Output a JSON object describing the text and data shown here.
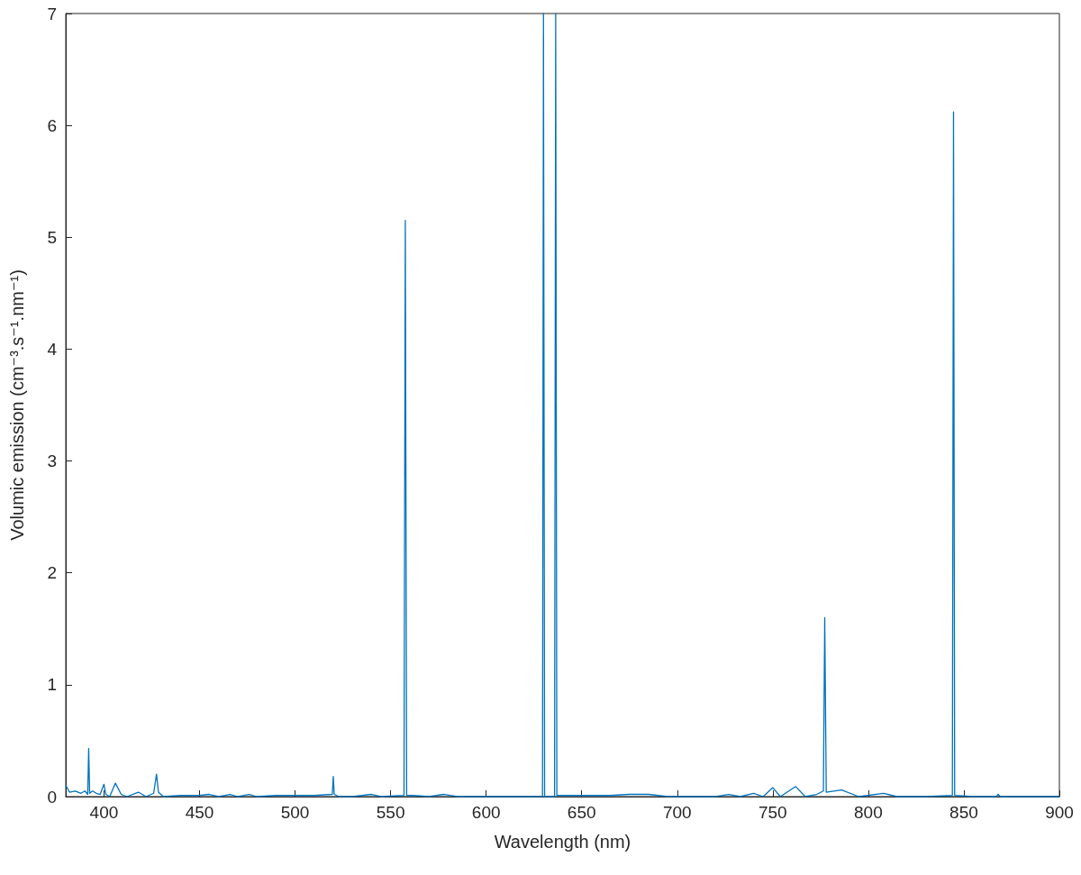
{
  "chart_data": {
    "type": "line",
    "xlabel": "Wavelength (nm)",
    "ylabel": "Volumic emission (cm⁻³.s⁻¹.nm⁻¹)",
    "x": [
      380,
      382,
      385,
      388,
      390,
      391.5,
      392,
      392.5,
      394,
      396,
      398,
      400,
      401,
      403,
      406,
      409,
      412,
      418,
      422,
      426,
      427.5,
      428.5,
      431,
      440,
      450,
      455,
      460,
      466,
      470,
      476,
      480,
      490,
      500,
      510,
      519.5,
      520,
      520.5,
      523,
      530,
      540,
      545,
      557,
      557.7,
      558.4,
      562,
      570,
      578,
      585,
      600,
      620,
      629.5,
      630,
      630.6,
      635.8,
      636.4,
      637,
      650,
      665,
      675,
      685,
      695,
      710,
      720,
      727,
      733,
      740,
      745,
      750,
      754,
      762,
      767,
      773,
      776.5,
      777.2,
      778,
      786,
      795,
      808,
      815,
      830,
      844,
      844.6,
      845.2,
      855,
      867,
      868,
      869,
      900
    ],
    "series": [
      {
        "color": "#0072bd",
        "values": [
          0.1,
          0.04,
          0.05,
          0.03,
          0.05,
          0.02,
          0.43,
          0.03,
          0.05,
          0.03,
          0.02,
          0.11,
          0.02,
          0,
          0.12,
          0.02,
          0,
          0.04,
          0,
          0.03,
          0.2,
          0.04,
          0,
          0.01,
          0.01,
          0.02,
          0,
          0.02,
          0,
          0.02,
          0,
          0.01,
          0.01,
          0.01,
          0.02,
          0.18,
          0.02,
          0,
          0,
          0.02,
          0,
          0.01,
          5.15,
          0.01,
          0.01,
          0,
          0.02,
          0,
          0,
          0,
          0,
          7,
          0,
          0,
          7,
          0.01,
          0.01,
          0.01,
          0.02,
          0.02,
          0,
          0,
          0,
          0.02,
          0,
          0.03,
          0,
          0.08,
          0,
          0.09,
          0,
          0.02,
          0.05,
          1.6,
          0.04,
          0.06,
          0,
          0.03,
          0,
          0,
          0.01,
          6.12,
          0.01,
          0,
          0,
          0.02,
          0,
          0
        ]
      }
    ],
    "xlim": [
      380,
      900
    ],
    "xticks": [
      400,
      450,
      500,
      550,
      600,
      650,
      700,
      750,
      800,
      850,
      900
    ],
    "ylim": [
      0,
      7
    ],
    "yticks": [
      0,
      1,
      2,
      3,
      4,
      5,
      6,
      7
    ],
    "grid": false,
    "marker": "none",
    "line_style": "solid"
  }
}
